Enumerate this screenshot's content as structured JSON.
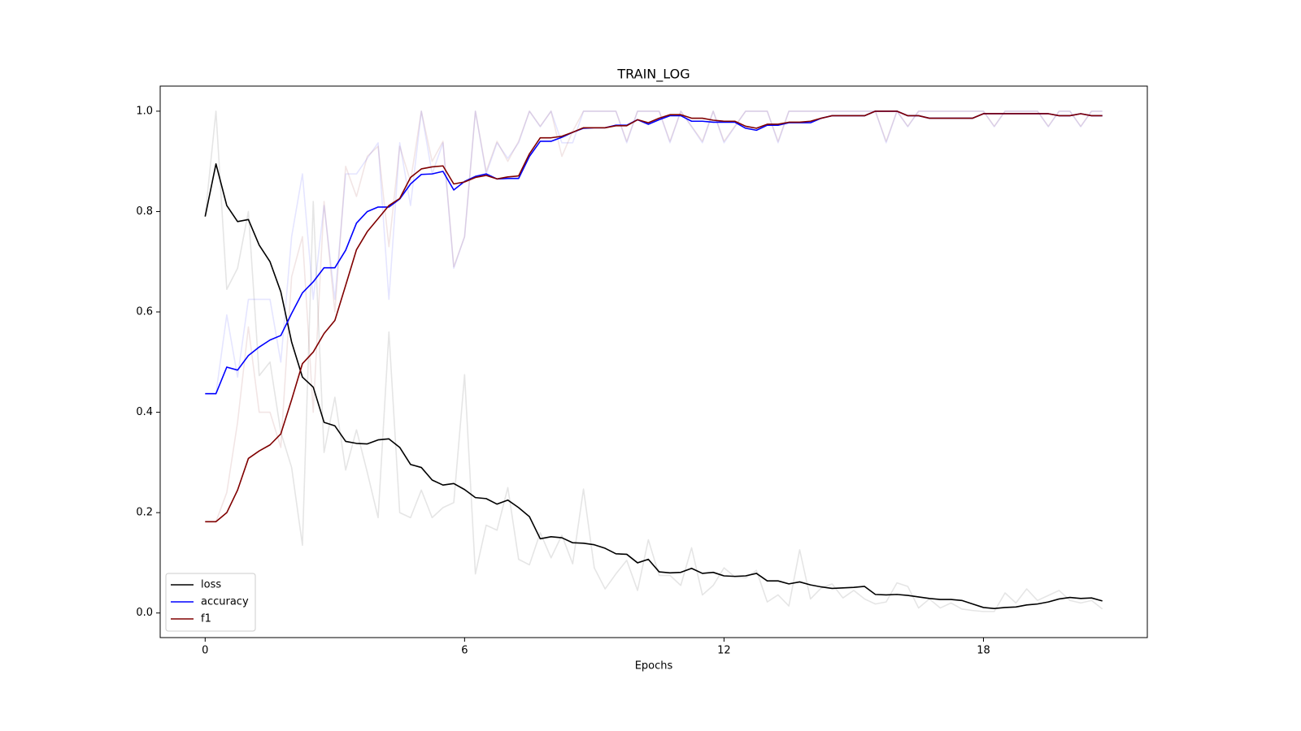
{
  "chart_data": {
    "type": "line",
    "title": "TRAIN_LOG",
    "xlabel": "Epochs",
    "x": [
      0,
      0.25,
      0.5,
      0.75,
      1,
      1.25,
      1.5,
      1.75,
      2,
      2.25,
      2.5,
      2.75,
      3,
      3.25,
      3.5,
      3.75,
      4,
      4.25,
      4.5,
      4.75,
      5,
      5.25,
      5.5,
      5.75,
      6,
      6.25,
      6.5,
      6.75,
      7,
      7.25,
      7.5,
      7.75,
      8,
      8.25,
      8.5,
      8.75,
      9,
      9.25,
      9.5,
      9.75,
      10,
      10.25,
      10.5,
      10.75,
      11,
      11.25,
      11.5,
      11.75,
      12,
      12.25,
      12.5,
      12.75,
      13,
      13.25,
      13.5,
      13.75,
      14,
      14.25,
      14.5,
      14.75,
      15,
      15.25,
      15.5,
      15.75,
      16,
      16.25,
      16.5,
      16.75,
      17,
      17.25,
      17.5,
      17.75,
      18,
      18.25,
      18.5,
      18.75,
      19,
      19.25,
      19.5,
      19.75,
      20,
      20.25,
      20.5,
      20.75
    ],
    "series": [
      {
        "color": "rgba(0,0,0,0.1)",
        "values": [
          0.79,
          1.0,
          0.645,
          0.687,
          0.8,
          0.473,
          0.5,
          0.36,
          0.29,
          0.135,
          0.82,
          0.32,
          0.43,
          0.285,
          0.365,
          0.28,
          0.19,
          0.56,
          0.2,
          0.19,
          0.245,
          0.19,
          0.21,
          0.22,
          0.475,
          0.078,
          0.175,
          0.165,
          0.25,
          0.107,
          0.096,
          0.16,
          0.11,
          0.155,
          0.098,
          0.247,
          0.09,
          0.048,
          0.078,
          0.105,
          0.045,
          0.146,
          0.075,
          0.075,
          0.055,
          0.13,
          0.036,
          0.055,
          0.09,
          0.072,
          0.07,
          0.085,
          0.022,
          0.036,
          0.014,
          0.126,
          0.028,
          0.05,
          0.058,
          0.03,
          0.045,
          0.028,
          0.018,
          0.022,
          0.06,
          0.053,
          0.01,
          0.028,
          0.01,
          0.02,
          0.008,
          0.005,
          0.003,
          0.003,
          0.04,
          0.02,
          0.048,
          0.025,
          0.035,
          0.045,
          0.025,
          0.02,
          0.025,
          0.008
        ]
      },
      {
        "color": "rgba(0,0,255,0.1)",
        "values": [
          0.437,
          0.437,
          0.594,
          0.47,
          0.625,
          0.625,
          0.625,
          0.5,
          0.75,
          0.875,
          0.625,
          0.812,
          0.625,
          0.875,
          0.875,
          0.906,
          0.937,
          0.625,
          0.937,
          0.812,
          1.0,
          0.875,
          0.937,
          0.687,
          0.75,
          1.0,
          0.875,
          0.937,
          0.906,
          0.937,
          1.0,
          0.969,
          1.0,
          0.937,
          0.937,
          1.0,
          1.0,
          1.0,
          1.0,
          0.937,
          1.0,
          1.0,
          1.0,
          0.937,
          1.0,
          0.969,
          0.937,
          1.0,
          0.937,
          0.969,
          1.0,
          1.0,
          1.0,
          0.937,
          1.0,
          1.0,
          1.0,
          1.0,
          1.0,
          1.0,
          1.0,
          1.0,
          1.0,
          0.937,
          1.0,
          0.969,
          1.0,
          1.0,
          1.0,
          1.0,
          1.0,
          1.0,
          1.0,
          0.969,
          1.0,
          1.0,
          1.0,
          1.0,
          0.969,
          1.0,
          1.0,
          0.969,
          1.0,
          1.0
        ]
      },
      {
        "color": "rgba(128,0,0,0.1)",
        "values": [
          0.182,
          0.182,
          0.24,
          0.38,
          0.57,
          0.4,
          0.4,
          0.33,
          0.67,
          0.75,
          0.4,
          0.82,
          0.6,
          0.89,
          0.83,
          0.91,
          0.93,
          0.73,
          0.93,
          0.86,
          1.0,
          0.9,
          0.94,
          0.69,
          0.75,
          1.0,
          0.88,
          0.94,
          0.9,
          0.94,
          1.0,
          0.97,
          1.0,
          0.91,
          0.96,
          1.0,
          1.0,
          1.0,
          1.0,
          0.94,
          1.0,
          1.0,
          1.0,
          0.94,
          1.0,
          0.97,
          0.94,
          1.0,
          0.94,
          0.97,
          1.0,
          1.0,
          1.0,
          0.94,
          1.0,
          1.0,
          1.0,
          1.0,
          1.0,
          1.0,
          1.0,
          1.0,
          1.0,
          0.94,
          1.0,
          0.97,
          1.0,
          1.0,
          1.0,
          1.0,
          1.0,
          1.0,
          1.0,
          0.97,
          1.0,
          1.0,
          1.0,
          1.0,
          0.97,
          1.0,
          1.0,
          0.97,
          1.0,
          1.0
        ]
      },
      {
        "name": "loss",
        "color": "#000000",
        "values": [
          0.79,
          0.895,
          0.812,
          0.78,
          0.784,
          0.733,
          0.7,
          0.64,
          0.54,
          0.47,
          0.45,
          0.38,
          0.373,
          0.342,
          0.338,
          0.337,
          0.345,
          0.347,
          0.33,
          0.296,
          0.29,
          0.265,
          0.255,
          0.258,
          0.246,
          0.23,
          0.228,
          0.217,
          0.225,
          0.21,
          0.192,
          0.148,
          0.152,
          0.15,
          0.14,
          0.139,
          0.136,
          0.129,
          0.118,
          0.117,
          0.1,
          0.107,
          0.082,
          0.08,
          0.081,
          0.089,
          0.079,
          0.081,
          0.074,
          0.073,
          0.074,
          0.079,
          0.064,
          0.064,
          0.058,
          0.062,
          0.056,
          0.052,
          0.049,
          0.05,
          0.051,
          0.053,
          0.037,
          0.036,
          0.037,
          0.035,
          0.032,
          0.029,
          0.027,
          0.027,
          0.025,
          0.018,
          0.011,
          0.009,
          0.011,
          0.012,
          0.016,
          0.018,
          0.022,
          0.028,
          0.031,
          0.029,
          0.03,
          0.024
        ]
      },
      {
        "name": "accuracy",
        "color": "#0000ff",
        "values": [
          0.437,
          0.437,
          0.49,
          0.484,
          0.513,
          0.53,
          0.544,
          0.553,
          0.597,
          0.638,
          0.66,
          0.688,
          0.688,
          0.723,
          0.777,
          0.8,
          0.809,
          0.809,
          0.825,
          0.855,
          0.874,
          0.875,
          0.88,
          0.843,
          0.86,
          0.87,
          0.875,
          0.865,
          0.866,
          0.866,
          0.91,
          0.94,
          0.94,
          0.948,
          0.958,
          0.966,
          0.967,
          0.967,
          0.972,
          0.972,
          0.983,
          0.974,
          0.983,
          0.991,
          0.991,
          0.98,
          0.98,
          0.978,
          0.978,
          0.978,
          0.966,
          0.962,
          0.972,
          0.972,
          0.977,
          0.977,
          0.977,
          0.986,
          0.991,
          0.991,
          0.991,
          0.991,
          1.0,
          1.0,
          1.0,
          0.991,
          0.991,
          0.986,
          0.986,
          0.986,
          0.986,
          0.986,
          0.995,
          0.995,
          0.995,
          0.995,
          0.995,
          0.995,
          0.995,
          0.991,
          0.991,
          0.995,
          0.991,
          0.991
        ]
      },
      {
        "name": "f1",
        "color": "#800000",
        "values": [
          0.182,
          0.182,
          0.2,
          0.245,
          0.308,
          0.323,
          0.335,
          0.357,
          0.425,
          0.497,
          0.52,
          0.557,
          0.583,
          0.653,
          0.724,
          0.76,
          0.786,
          0.812,
          0.826,
          0.868,
          0.885,
          0.889,
          0.891,
          0.855,
          0.859,
          0.868,
          0.872,
          0.865,
          0.869,
          0.871,
          0.915,
          0.947,
          0.947,
          0.95,
          0.958,
          0.967,
          0.967,
          0.967,
          0.971,
          0.971,
          0.983,
          0.977,
          0.986,
          0.993,
          0.993,
          0.986,
          0.986,
          0.982,
          0.98,
          0.98,
          0.97,
          0.966,
          0.974,
          0.974,
          0.978,
          0.978,
          0.98,
          0.986,
          0.991,
          0.991,
          0.991,
          0.991,
          1.0,
          1.0,
          1.0,
          0.991,
          0.991,
          0.986,
          0.986,
          0.986,
          0.986,
          0.986,
          0.995,
          0.995,
          0.995,
          0.995,
          0.995,
          0.995,
          0.995,
          0.991,
          0.991,
          0.995,
          0.991,
          0.991
        ]
      }
    ],
    "xlim": [
      -1.04,
      21.79
    ],
    "xticks": [
      0,
      6,
      12,
      18
    ],
    "ylim": [
      -0.049,
      1.05
    ],
    "yticks": [
      {
        "value": 0,
        "label": "0.0"
      },
      0.2,
      0.4,
      0.6,
      0.8,
      {
        "value": 1,
        "label": "1.0"
      }
    ],
    "legend": "lower left"
  }
}
